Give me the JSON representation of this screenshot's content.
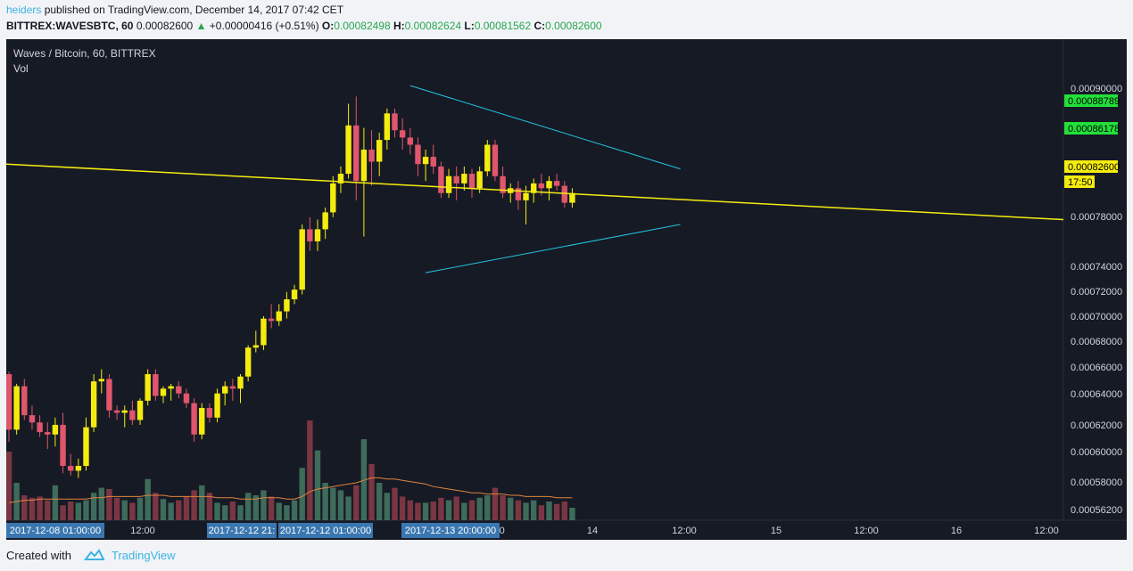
{
  "header": {
    "user": "heiders",
    "published": "published on TradingView.com, December 14, 2017 07:42 CET",
    "symbol": "BITTREX:WAVESBTC, 60",
    "last": "0.00082600",
    "arrow": "▲",
    "change": "+0.00000416 (+0.51%)",
    "o_label": "O:",
    "o_value": "0.00082498",
    "h_label": "H:",
    "h_value": "0.00082624",
    "l_label": "L:",
    "l_value": "0.00081562",
    "c_label": "C:",
    "c_value": "0.00082600"
  },
  "chart": {
    "title": "Waves / Bitcoin, 60, BITTREX",
    "volume_label": "Vol"
  },
  "chart_data": {
    "type": "candlestick",
    "colors": {
      "up": "#f5ec0f",
      "down": "#e0566c",
      "vol_up": "#3e6b5a",
      "vol_down": "#7a3642",
      "ma": "#e0833c",
      "trend": "#f5ec0f",
      "triangle": "#22c7e0",
      "bg": "#161a25"
    },
    "price_axis": {
      "ticks": [
        "0.00090000",
        "0.00078000",
        "0.00074000",
        "0.00072000",
        "0.00070000",
        "0.00068000",
        "0.00066000",
        "0.00064000",
        "0.00062000",
        "0.00060000",
        "0.00058000",
        "0.00056200"
      ],
      "badges": [
        {
          "text": "0.00088789",
          "color": "#22e03a"
        },
        {
          "text": "0.00086178",
          "color": "#22e03a"
        },
        {
          "text": "0.00082600",
          "color": "#f5ec0f"
        },
        {
          "text": "17:50",
          "color": "#f5ec0f"
        }
      ]
    },
    "time_axis": {
      "ticks": [
        "12:00",
        "2:00",
        "14",
        "12:00",
        "15",
        "12:00",
        "16",
        "12:00"
      ],
      "highlights": [
        "2017-12-08 01:00:00",
        "2017-12-12 21:",
        "2017-12-12 01:00:00",
        "2017-12-13 20:00:00"
      ]
    },
    "candles": [
      [
        0.000676,
        0.000678,
        0.00062,
        0.00063
      ],
      [
        0.00063,
        0.000668,
        0.000626,
        0.000666
      ],
      [
        0.000666,
        0.000672,
        0.000638,
        0.000642
      ],
      [
        0.000642,
        0.00065,
        0.00063,
        0.000636
      ],
      [
        0.000636,
        0.000642,
        0.000624,
        0.000628
      ],
      [
        0.000628,
        0.000636,
        0.000614,
        0.000626
      ],
      [
        0.000626,
        0.00064,
        0.000616,
        0.000634
      ],
      [
        0.000634,
        0.000644,
        0.000594,
        0.0006
      ],
      [
        0.0006,
        0.00061,
        0.000592,
        0.000596
      ],
      [
        0.000596,
        0.000606,
        0.00059,
        0.0006
      ],
      [
        0.0006,
        0.00064,
        0.000596,
        0.000632
      ],
      [
        0.000632,
        0.000676,
        0.000628,
        0.00067
      ],
      [
        0.00067,
        0.00068,
        0.00066,
        0.000672
      ],
      [
        0.000672,
        0.000676,
        0.00064,
        0.000646
      ],
      [
        0.000646,
        0.00065,
        0.000638,
        0.000644
      ],
      [
        0.000644,
        0.00065,
        0.000632,
        0.000646
      ],
      [
        0.000646,
        0.000654,
        0.000634,
        0.000638
      ],
      [
        0.000638,
        0.000656,
        0.000634,
        0.000654
      ],
      [
        0.000654,
        0.00068,
        0.00065,
        0.000676
      ],
      [
        0.000676,
        0.00068,
        0.000654,
        0.000658
      ],
      [
        0.000658,
        0.000666,
        0.000652,
        0.000664
      ],
      [
        0.000664,
        0.000668,
        0.000654,
        0.000666
      ],
      [
        0.000666,
        0.00067,
        0.000656,
        0.00066
      ],
      [
        0.00066,
        0.000664,
        0.000648,
        0.000652
      ],
      [
        0.000652,
        0.000656,
        0.00062,
        0.000626
      ],
      [
        0.000626,
        0.000652,
        0.000622,
        0.000648
      ],
      [
        0.000648,
        0.000652,
        0.000636,
        0.00064
      ],
      [
        0.00064,
        0.000664,
        0.000636,
        0.00066
      ],
      [
        0.00066,
        0.00067,
        0.00065,
        0.000666
      ],
      [
        0.000666,
        0.000672,
        0.000654,
        0.000664
      ],
      [
        0.000664,
        0.000676,
        0.000652,
        0.000674
      ],
      [
        0.000674,
        0.0007,
        0.00067,
        0.000698
      ],
      [
        0.000698,
        0.000712,
        0.000694,
        0.0007
      ],
      [
        0.0007,
        0.000724,
        0.000696,
        0.000722
      ],
      [
        0.000722,
        0.000734,
        0.000714,
        0.00072
      ],
      [
        0.00072,
        0.000734,
        0.000716,
        0.000728
      ],
      [
        0.000728,
        0.000744,
        0.000722,
        0.000738
      ],
      [
        0.000738,
        0.00075,
        0.000734,
        0.000746
      ],
      [
        0.000746,
        0.0008,
        0.000742,
        0.000796
      ],
      [
        0.000796,
        0.000806,
        0.000778,
        0.000786
      ],
      [
        0.000786,
        0.000804,
        0.000778,
        0.000796
      ],
      [
        0.000796,
        0.000814,
        0.000788,
        0.00081
      ],
      [
        0.00081,
        0.00084,
        0.000806,
        0.000834
      ],
      [
        0.000834,
        0.000848,
        0.000826,
        0.000842
      ],
      [
        0.000842,
        0.0009,
        0.000838,
        0.000882
      ],
      [
        0.000882,
        0.000906,
        0.00082,
        0.000836
      ],
      [
        0.000836,
        0.00088,
        0.00079,
        0.000862
      ],
      [
        0.000862,
        0.000878,
        0.000832,
        0.000852
      ],
      [
        0.000852,
        0.000876,
        0.00084,
        0.00087
      ],
      [
        0.00087,
        0.000896,
        0.000862,
        0.000892
      ],
      [
        0.000892,
        0.000896,
        0.000872,
        0.000878
      ],
      [
        0.000878,
        0.000888,
        0.000862,
        0.000872
      ],
      [
        0.000872,
        0.00088,
        0.000858,
        0.000866
      ],
      [
        0.000866,
        0.000872,
        0.00084,
        0.00085
      ],
      [
        0.00085,
        0.000862,
        0.000836,
        0.000856
      ],
      [
        0.000856,
        0.000866,
        0.000842,
        0.000848
      ],
      [
        0.000848,
        0.000852,
        0.000822,
        0.000826
      ],
      [
        0.000826,
        0.000846,
        0.000822,
        0.00084
      ],
      [
        0.00084,
        0.000848,
        0.00082,
        0.000834
      ],
      [
        0.000834,
        0.000848,
        0.000828,
        0.000842
      ],
      [
        0.000842,
        0.000846,
        0.000822,
        0.00083
      ],
      [
        0.00083,
        0.000848,
        0.000826,
        0.000844
      ],
      [
        0.000844,
        0.00087,
        0.00084,
        0.000866
      ],
      [
        0.000866,
        0.00087,
        0.000836,
        0.00084
      ],
      [
        0.00084,
        0.000848,
        0.000822,
        0.000826
      ],
      [
        0.000826,
        0.000834,
        0.000818,
        0.00083
      ],
      [
        0.00083,
        0.000836,
        0.000812,
        0.00082
      ],
      [
        0.00082,
        0.000832,
        0.0008,
        0.000826
      ],
      [
        0.000826,
        0.000838,
        0.000818,
        0.000834
      ],
      [
        0.000834,
        0.000842,
        0.000824,
        0.00083
      ],
      [
        0.00083,
        0.00084,
        0.00082,
        0.000836
      ],
      [
        0.000836,
        0.000842,
        0.000828,
        0.000832
      ],
      [
        0.000832,
        0.000836,
        0.000814,
        0.000818
      ],
      [
        0.000818,
        0.00083,
        0.000814,
        0.000826
      ]
    ],
    "volume": [
      0.55,
      0.3,
      0.2,
      0.18,
      0.19,
      0.16,
      0.28,
      0.12,
      0.15,
      0.14,
      0.16,
      0.22,
      0.26,
      0.25,
      0.18,
      0.16,
      0.14,
      0.18,
      0.33,
      0.22,
      0.17,
      0.14,
      0.16,
      0.19,
      0.24,
      0.28,
      0.22,
      0.14,
      0.12,
      0.15,
      0.12,
      0.22,
      0.2,
      0.24,
      0.19,
      0.14,
      0.12,
      0.16,
      0.42,
      0.8,
      0.56,
      0.3,
      0.26,
      0.24,
      0.19,
      0.28,
      0.65,
      0.45,
      0.3,
      0.22,
      0.26,
      0.19,
      0.16,
      0.14,
      0.14,
      0.15,
      0.18,
      0.16,
      0.19,
      0.14,
      0.16,
      0.18,
      0.2,
      0.26,
      0.2,
      0.18,
      0.16,
      0.14,
      0.16,
      0.12,
      0.15,
      0.13,
      0.15,
      0.1
    ],
    "volume_ma": [
      0.14,
      0.15,
      0.16,
      0.16,
      0.17,
      0.17,
      0.17,
      0.17,
      0.17,
      0.17,
      0.17,
      0.18,
      0.18,
      0.19,
      0.19,
      0.19,
      0.19,
      0.19,
      0.2,
      0.2,
      0.2,
      0.19,
      0.19,
      0.19,
      0.19,
      0.19,
      0.19,
      0.18,
      0.18,
      0.18,
      0.17,
      0.17,
      0.17,
      0.18,
      0.18,
      0.18,
      0.17,
      0.17,
      0.19,
      0.23,
      0.25,
      0.26,
      0.27,
      0.28,
      0.29,
      0.3,
      0.32,
      0.34,
      0.34,
      0.33,
      0.33,
      0.32,
      0.31,
      0.3,
      0.29,
      0.27,
      0.26,
      0.25,
      0.24,
      0.23,
      0.22,
      0.22,
      0.21,
      0.21,
      0.21,
      0.2,
      0.2,
      0.19,
      0.19,
      0.19,
      0.19,
      0.18,
      0.18,
      0.18
    ],
    "trendline": {
      "from_price": 0.00085,
      "to_price": 0.000804
    },
    "triangle_upper": {
      "from_price": 0.000915,
      "to_price": 0.000846
    },
    "triangle_lower": {
      "from_price": 0.00076,
      "to_price": 0.0008
    }
  },
  "footer": {
    "created": "Created with",
    "brand": "TradingView"
  }
}
